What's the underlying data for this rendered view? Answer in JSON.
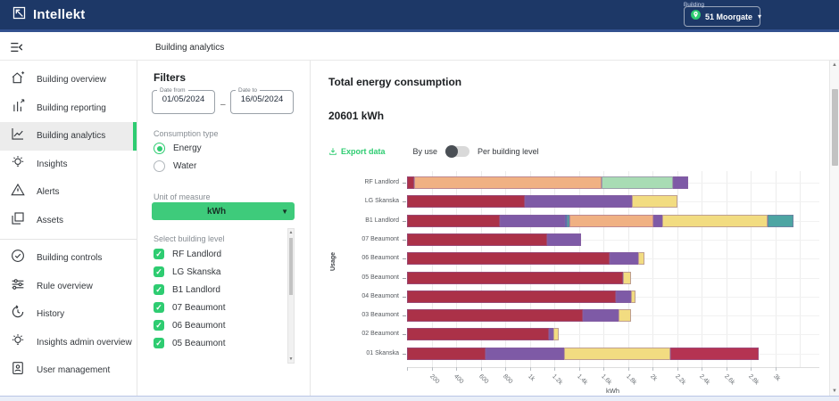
{
  "topnav": {
    "brand": "Intellekt",
    "building_label": "Building",
    "building_value": "51 Moorgate"
  },
  "header": {
    "breadcrumb": "Building analytics"
  },
  "sidebar": {
    "items": [
      {
        "icon": "building-overview-icon",
        "label": "Building overview",
        "active": false
      },
      {
        "icon": "building-reporting-icon",
        "label": "Building reporting",
        "active": false
      },
      {
        "icon": "building-analytics-icon",
        "label": "Building analytics",
        "active": true
      },
      {
        "icon": "insights-icon",
        "label": "Insights",
        "active": false
      },
      {
        "icon": "alerts-icon",
        "label": "Alerts",
        "active": false
      },
      {
        "icon": "assets-icon",
        "label": "Assets",
        "active": false
      },
      {
        "divider": true
      },
      {
        "icon": "building-controls-icon",
        "label": "Building controls",
        "active": false
      },
      {
        "icon": "rule-overview-icon",
        "label": "Rule overview",
        "active": false
      },
      {
        "icon": "history-icon",
        "label": "History",
        "active": false
      },
      {
        "icon": "insights-admin-icon",
        "label": "Insights admin overview",
        "active": false
      },
      {
        "icon": "user-management-icon",
        "label": "User management",
        "active": false
      }
    ]
  },
  "filters": {
    "title": "Filters",
    "date_from_label": "Date from",
    "date_from_value": "01/05/2024",
    "range_separator": "–",
    "date_to_label": "Date to",
    "date_to_value": "16/05/2024",
    "consumption_type_label": "Consumption type",
    "consumption_options": [
      {
        "label": "Energy",
        "selected": true
      },
      {
        "label": "Water",
        "selected": false
      }
    ],
    "unit_label": "Unit of measure",
    "unit_value": "kWh",
    "building_level_label": "Select building level",
    "building_levels": [
      {
        "label": "RF Landlord",
        "checked": true
      },
      {
        "label": "LG Skanska",
        "checked": true
      },
      {
        "label": "B1 Landlord",
        "checked": true
      },
      {
        "label": "07 Beaumont",
        "checked": true
      },
      {
        "label": "06 Beaumont",
        "checked": true
      },
      {
        "label": "05 Beaumont",
        "checked": true
      }
    ]
  },
  "main": {
    "title": "Total energy consumption",
    "total": "20601 kWh",
    "export_label": "Export data",
    "toggle_left": "By use",
    "toggle_right": "Per building level",
    "toggle_state": "left"
  },
  "colors": {
    "accent_green": "#2ecc71",
    "navy": "#1d3867"
  },
  "chart_data": {
    "type": "bar",
    "orientation": "horizontal-stacked",
    "title": "Total energy consumption",
    "total_kwh": 20601,
    "xlabel": "kWh",
    "ylabel": "Usage",
    "x_tick_interval": 200,
    "x_ticks": [
      "200",
      "400",
      "600",
      "800",
      "1k",
      "1.2k",
      "1.4k",
      "1.6k",
      "1.8k",
      "2k",
      "2.2k",
      "2.4k",
      "2.6k",
      "2.8k",
      "3k"
    ],
    "xlim": [
      0,
      3200
    ],
    "grid": true,
    "legend": "none",
    "rows": [
      {
        "label": "RF Landlord",
        "segments": [
          {
            "color": "#ab3148",
            "value": 55
          },
          {
            "color": "#f0b183",
            "value": 1530
          },
          {
            "color": "#a8dcb4",
            "value": 585
          },
          {
            "color": "#7e5aa6",
            "value": 120
          }
        ]
      },
      {
        "label": "LG Skanska",
        "segments": [
          {
            "color": "#ab3148",
            "value": 960
          },
          {
            "color": "#7e5aa6",
            "value": 875
          },
          {
            "color": "#f2dc81",
            "value": 365
          }
        ]
      },
      {
        "label": "B1 Landlord",
        "segments": [
          {
            "color": "#ab3148",
            "value": 755
          },
          {
            "color": "#7e5aa6",
            "value": 530
          },
          {
            "color": "#3f72b8",
            "value": 20
          },
          {
            "color": "#4da5a3",
            "value": 20
          },
          {
            "color": "#f0b183",
            "value": 685
          },
          {
            "color": "#7e5aa6",
            "value": 70
          },
          {
            "color": "#f2dc81",
            "value": 855
          },
          {
            "color": "#4da5a3",
            "value": 215
          }
        ]
      },
      {
        "label": "07 Beaumont",
        "segments": [
          {
            "color": "#ab3148",
            "value": 1145
          },
          {
            "color": "#7e5aa6",
            "value": 270
          }
        ]
      },
      {
        "label": "06 Beaumont",
        "segments": [
          {
            "color": "#ab3148",
            "value": 1650
          },
          {
            "color": "#7e5aa6",
            "value": 235
          },
          {
            "color": "#f2dc81",
            "value": 50
          }
        ]
      },
      {
        "label": "05 Beaumont",
        "segments": [
          {
            "color": "#ab3148",
            "value": 1761
          },
          {
            "color": "#f2dc81",
            "value": 65
          }
        ]
      },
      {
        "label": "04 Beaumont",
        "segments": [
          {
            "color": "#ab3148",
            "value": 1700
          },
          {
            "color": "#7e5aa6",
            "value": 125
          },
          {
            "color": "#f2dc81",
            "value": 35
          }
        ]
      },
      {
        "label": "03 Beaumont",
        "segments": [
          {
            "color": "#ab3148",
            "value": 1430
          },
          {
            "color": "#7e5aa6",
            "value": 295
          },
          {
            "color": "#f2dc81",
            "value": 100
          }
        ]
      },
      {
        "label": "02 Beaumont",
        "segments": [
          {
            "color": "#ab3148",
            "value": 1155
          },
          {
            "color": "#7e5aa6",
            "value": 40
          },
          {
            "color": "#f2dc81",
            "value": 40
          }
        ]
      },
      {
        "label": "01 Skanska",
        "segments": [
          {
            "color": "#ab3148",
            "value": 640
          },
          {
            "color": "#7e5aa6",
            "value": 640
          },
          {
            "color": "#f2dc81",
            "value": 865
          },
          {
            "color": "#b53352",
            "value": 720
          }
        ]
      }
    ]
  }
}
